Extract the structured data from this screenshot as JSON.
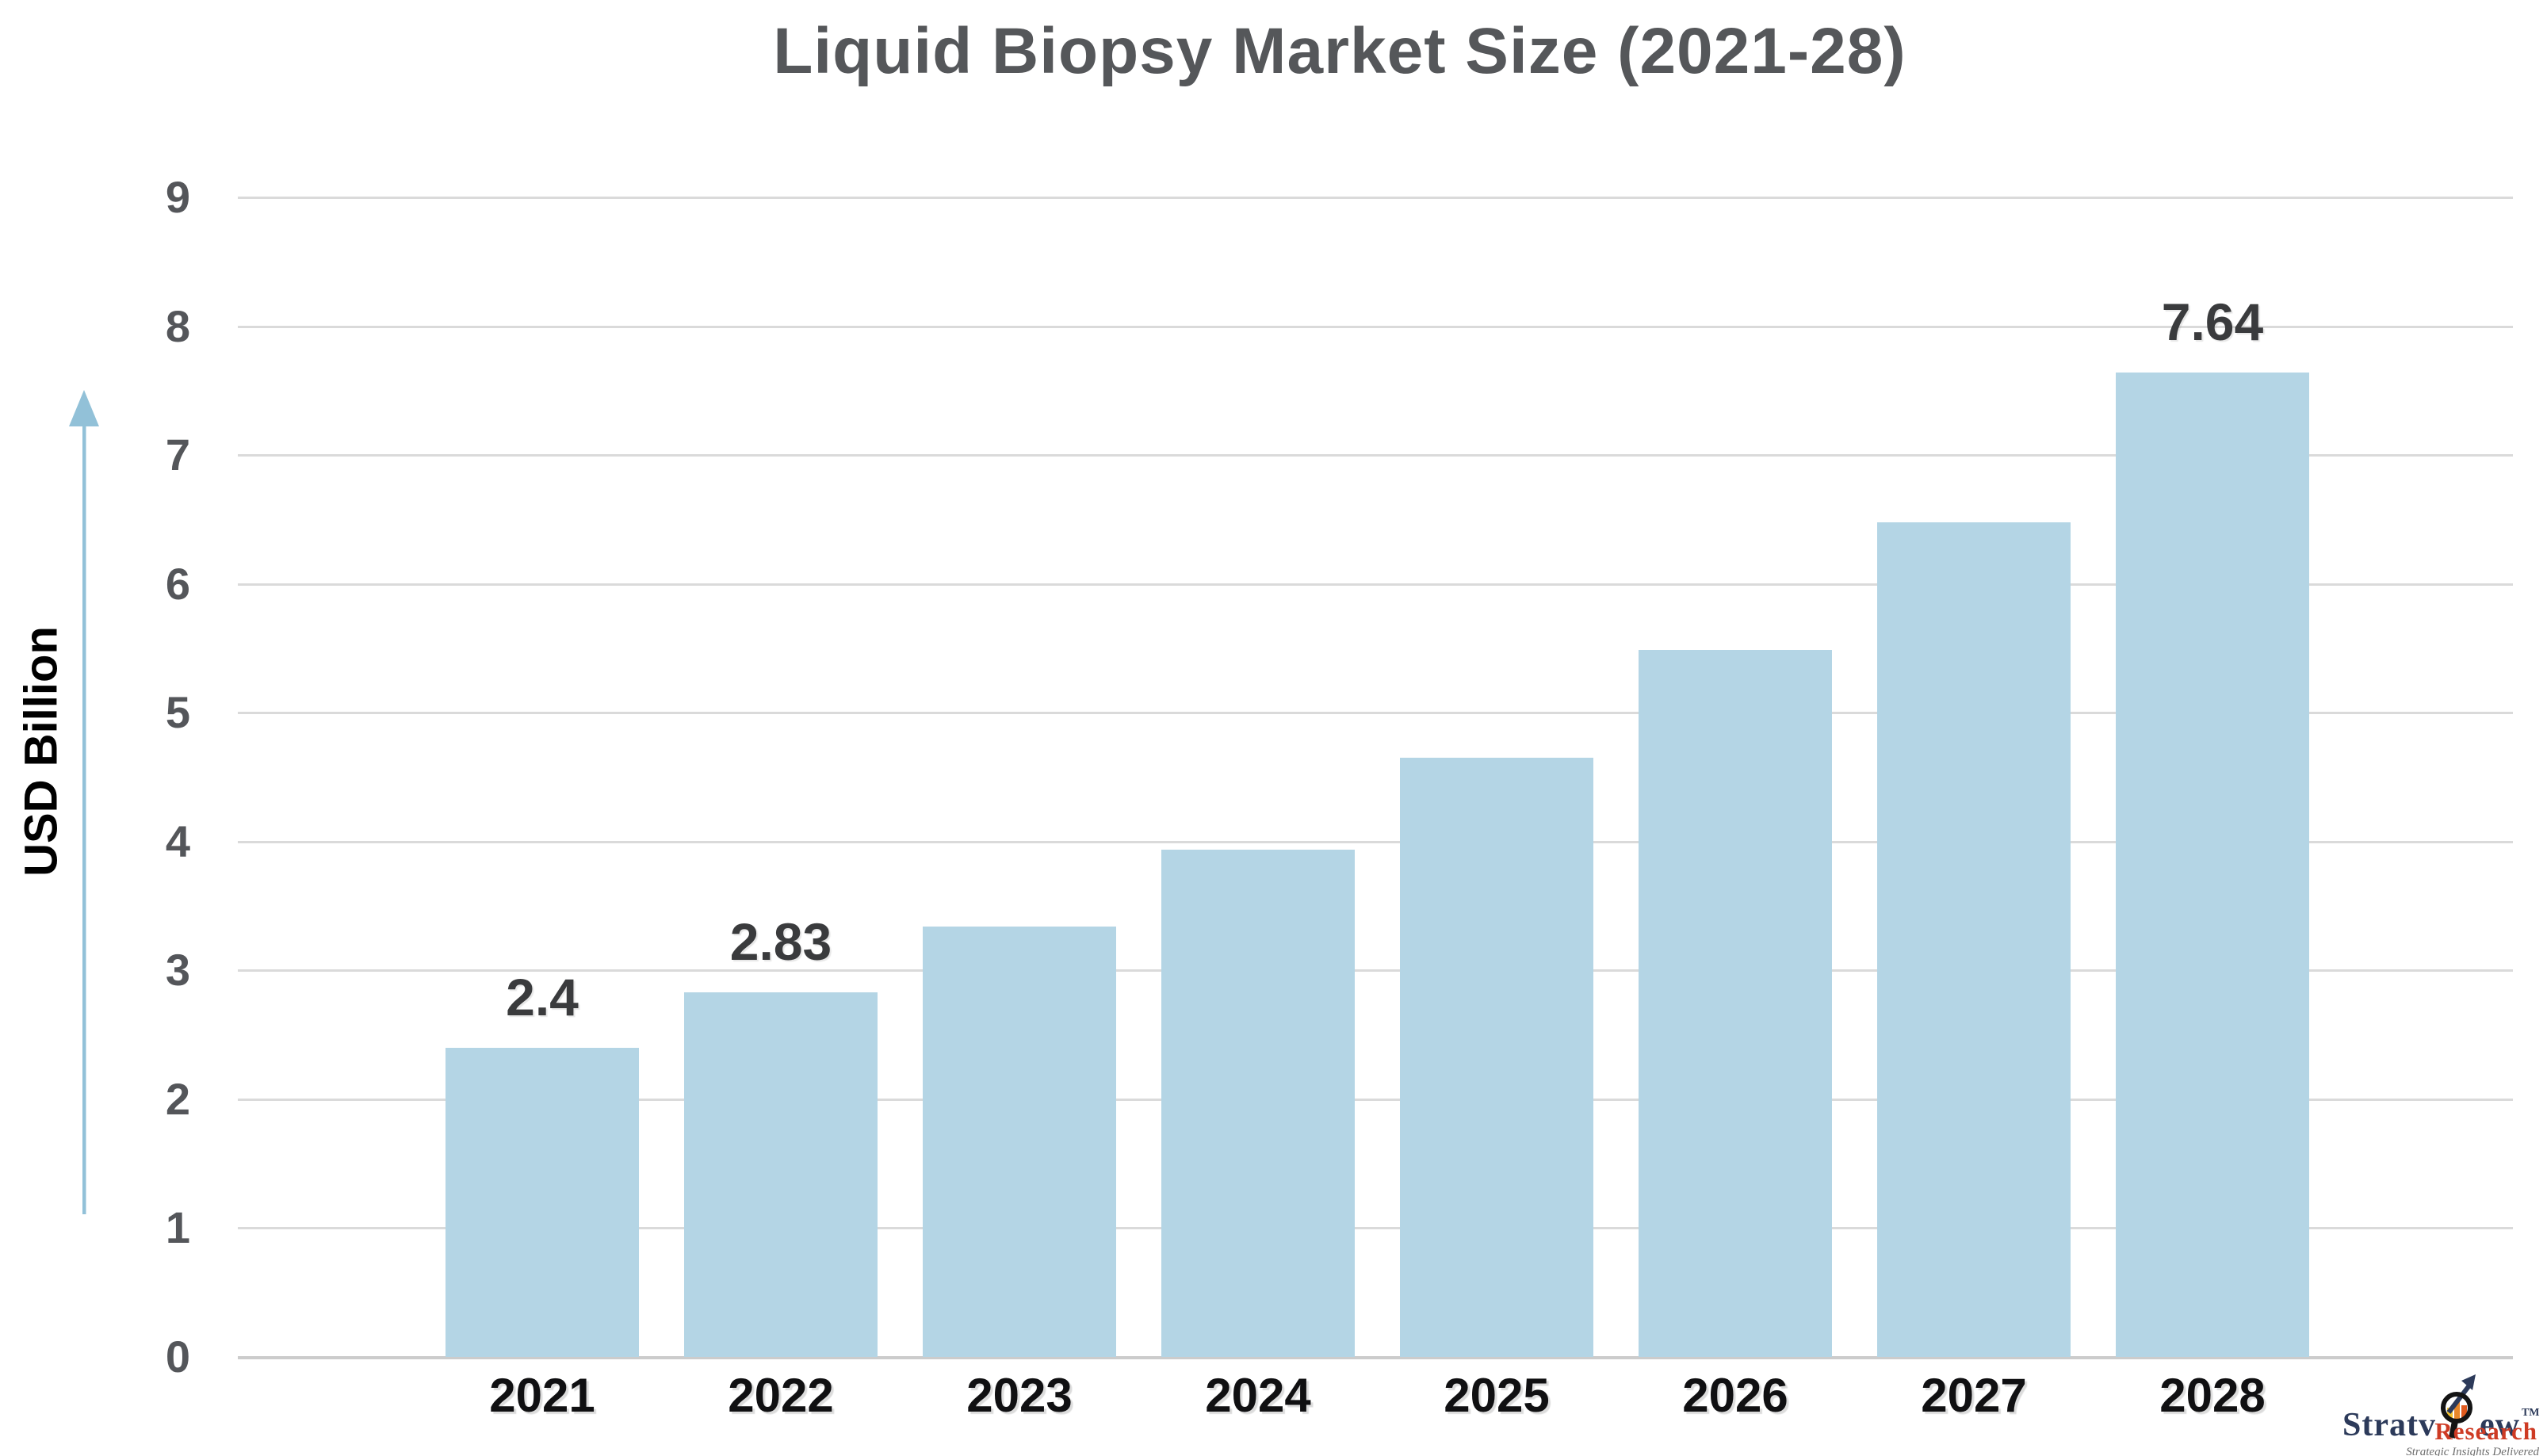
{
  "title": "Liquid Biopsy Market Size (2021-28)",
  "chart_data": {
    "type": "bar",
    "title": "Liquid Biopsy Market Size (2021-28)",
    "categories": [
      "2021",
      "2022",
      "2023",
      "2024",
      "2025",
      "2026",
      "2027",
      "2028"
    ],
    "values": [
      2.4,
      2.83,
      3.34,
      3.94,
      4.65,
      5.49,
      6.48,
      7.64
    ],
    "bar_labels": [
      "2.4",
      "2.83",
      null,
      null,
      null,
      null,
      null,
      "7.64"
    ],
    "xlabel": "",
    "ylabel": "USD Billion",
    "ylim": [
      0,
      9
    ],
    "yticks": [
      0,
      1,
      2,
      3,
      4,
      5,
      6,
      7,
      8,
      9
    ],
    "grid": true,
    "legend": "none",
    "bar_color": "#B4D5E5",
    "gridline_color": "#DADADA",
    "axis_text_color": "#54565A",
    "value_label_color": "#3A3B3D",
    "arrow_color": "#92C1D8",
    "title_color": "#55575A"
  },
  "logo": {
    "brand_part1": "Stratv",
    "brand_part2": "ew",
    "trademark": "TM",
    "brand2": "Research",
    "tagline": "Strategic Insights Delivered",
    "brand_color": "#2C3A5A",
    "brand2_color": "#CE3B24",
    "icon": "magnifier-bar-chart-arrow-icon"
  }
}
